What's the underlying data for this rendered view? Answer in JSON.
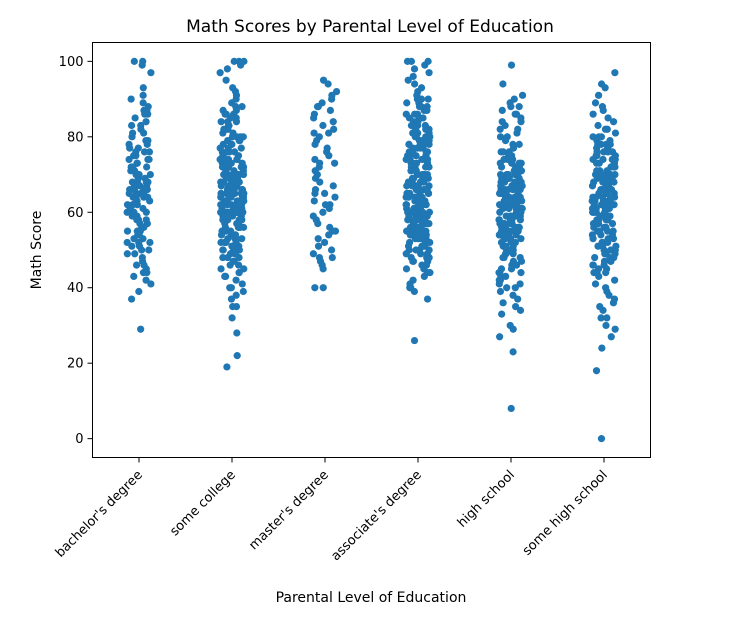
{
  "chart_data": {
    "type": "scatter",
    "subtype": "strip",
    "title": "Math Scores by Parental Level of Education",
    "xlabel": "Parental Level of Education",
    "ylabel": "Math Score",
    "categories": [
      "bachelor's degree",
      "some college",
      "master's degree",
      "associate's degree",
      "high school",
      "some high school"
    ],
    "yticks": [
      0,
      20,
      40,
      60,
      80,
      100
    ],
    "ylim": [
      -5,
      105
    ],
    "grid": false,
    "marker_color": "#1f77b4",
    "series": [
      {
        "category": "bachelor's degree",
        "summary": {
          "count": 118,
          "min": 29,
          "max": 100
        },
        "values": [
          100,
          100,
          99,
          97,
          93,
          91,
          90,
          88,
          87,
          87,
          86,
          85,
          84,
          83,
          82,
          81,
          80,
          79,
          79,
          78,
          77,
          77,
          76,
          76,
          75,
          75,
          74,
          74,
          73,
          73,
          72,
          72,
          71,
          71,
          70,
          70,
          70,
          69,
          69,
          68,
          68,
          68,
          67,
          67,
          67,
          66,
          66,
          66,
          65,
          65,
          65,
          65,
          64,
          64,
          64,
          63,
          63,
          63,
          62,
          62,
          62,
          61,
          61,
          60,
          60,
          60,
          59,
          59,
          58,
          58,
          57,
          57,
          56,
          56,
          55,
          55,
          54,
          54,
          53,
          53,
          52,
          52,
          51,
          51,
          50,
          50,
          49,
          48,
          47,
          46,
          45,
          44,
          43,
          42,
          41,
          39,
          37,
          29,
          89,
          86,
          83,
          81,
          78,
          76,
          74,
          72,
          70,
          68,
          66,
          64,
          62,
          60,
          58,
          55,
          52,
          49,
          46,
          44
        ]
      },
      {
        "category": "some college",
        "summary": {
          "count": 226,
          "min": 19,
          "max": 100
        },
        "values": [
          100,
          100,
          100,
          99,
          98,
          97,
          95,
          93,
          92,
          91,
          90,
          89,
          88,
          88,
          87,
          87,
          86,
          86,
          85,
          85,
          84,
          84,
          83,
          83,
          82,
          82,
          81,
          81,
          80,
          80,
          80,
          79,
          79,
          79,
          78,
          78,
          78,
          77,
          77,
          77,
          76,
          76,
          76,
          75,
          75,
          75,
          75,
          74,
          74,
          74,
          74,
          73,
          73,
          73,
          73,
          72,
          72,
          72,
          72,
          71,
          71,
          71,
          71,
          70,
          70,
          70,
          70,
          70,
          69,
          69,
          69,
          69,
          69,
          68,
          68,
          68,
          68,
          68,
          67,
          67,
          67,
          67,
          67,
          67,
          66,
          66,
          66,
          66,
          66,
          66,
          65,
          65,
          65,
          65,
          65,
          65,
          64,
          64,
          64,
          64,
          64,
          64,
          63,
          63,
          63,
          63,
          63,
          63,
          62,
          62,
          62,
          62,
          62,
          62,
          61,
          61,
          61,
          61,
          61,
          61,
          60,
          60,
          60,
          60,
          60,
          60,
          59,
          59,
          59,
          59,
          59,
          58,
          58,
          58,
          58,
          58,
          57,
          57,
          57,
          57,
          56,
          56,
          56,
          56,
          55,
          55,
          55,
          55,
          54,
          54,
          54,
          53,
          53,
          53,
          52,
          52,
          52,
          51,
          51,
          51,
          50,
          50,
          50,
          49,
          49,
          49,
          48,
          48,
          47,
          47,
          46,
          46,
          45,
          45,
          44,
          44,
          43,
          43,
          42,
          41,
          40,
          40,
          39,
          38,
          37,
          35,
          35,
          32,
          28,
          22,
          19,
          86,
          84,
          82,
          80,
          78,
          76,
          74,
          72,
          70,
          68,
          66,
          64,
          62,
          60,
          58,
          56,
          54,
          52,
          50,
          48,
          72,
          70,
          68,
          66,
          64,
          62,
          60,
          58,
          70,
          65,
          60,
          55,
          67,
          63
        ]
      },
      {
        "category": "master's degree",
        "summary": {
          "count": 59,
          "min": 40,
          "max": 95
        },
        "values": [
          95,
          94,
          92,
          91,
          90,
          89,
          88,
          87,
          86,
          85,
          84,
          83,
          82,
          81,
          80,
          79,
          78,
          77,
          76,
          75,
          74,
          73,
          72,
          71,
          70,
          69,
          68,
          67,
          66,
          65,
          64,
          63,
          62,
          61,
          60,
          59,
          58,
          57,
          56,
          55,
          54,
          53,
          52,
          51,
          50,
          49,
          48,
          47,
          46,
          45,
          40,
          40,
          81,
          73,
          65,
          62,
          55,
          48,
          88
        ]
      },
      {
        "category": "associate's degree",
        "summary": {
          "count": 222,
          "min": 26,
          "max": 100
        },
        "values": [
          100,
          100,
          100,
          99,
          98,
          97,
          96,
          95,
          94,
          93,
          92,
          91,
          90,
          90,
          89,
          89,
          88,
          88,
          87,
          87,
          86,
          86,
          85,
          85,
          84,
          84,
          83,
          83,
          82,
          82,
          81,
          81,
          80,
          80,
          80,
          79,
          79,
          79,
          78,
          78,
          78,
          77,
          77,
          77,
          76,
          76,
          76,
          75,
          75,
          75,
          74,
          74,
          74,
          73,
          73,
          73,
          72,
          72,
          72,
          71,
          71,
          71,
          70,
          70,
          70,
          70,
          69,
          69,
          69,
          69,
          68,
          68,
          68,
          68,
          67,
          67,
          67,
          67,
          66,
          66,
          66,
          66,
          65,
          65,
          65,
          65,
          64,
          64,
          64,
          64,
          63,
          63,
          63,
          63,
          62,
          62,
          62,
          62,
          61,
          61,
          61,
          61,
          60,
          60,
          60,
          60,
          59,
          59,
          59,
          59,
          58,
          58,
          58,
          58,
          57,
          57,
          57,
          57,
          56,
          56,
          56,
          56,
          55,
          55,
          55,
          55,
          54,
          54,
          54,
          54,
          53,
          53,
          53,
          52,
          52,
          52,
          51,
          51,
          51,
          50,
          50,
          50,
          49,
          49,
          48,
          48,
          47,
          47,
          46,
          46,
          45,
          45,
          44,
          44,
          43,
          42,
          41,
          40,
          40,
          39,
          37,
          26,
          85,
          83,
          81,
          79,
          77,
          75,
          73,
          71,
          69,
          67,
          65,
          63,
          61,
          59,
          57,
          55,
          53,
          51,
          49,
          47,
          84,
          80,
          76,
          72,
          68,
          64,
          60,
          56,
          52,
          48,
          90,
          86,
          82,
          78,
          74,
          70,
          66,
          62,
          58,
          54,
          50,
          88,
          62,
          58,
          56,
          54,
          60,
          57,
          55,
          53,
          66,
          70,
          74,
          78
        ]
      },
      {
        "category": "high school",
        "summary": {
          "count": 196,
          "min": 8,
          "max": 99
        },
        "values": [
          99,
          94,
          91,
          90,
          89,
          88,
          87,
          86,
          85,
          84,
          83,
          82,
          81,
          80,
          79,
          78,
          77,
          76,
          76,
          75,
          75,
          74,
          74,
          73,
          73,
          73,
          72,
          72,
          72,
          71,
          71,
          71,
          70,
          70,
          70,
          70,
          69,
          69,
          69,
          69,
          68,
          68,
          68,
          68,
          67,
          67,
          67,
          67,
          66,
          66,
          66,
          66,
          65,
          65,
          65,
          65,
          64,
          64,
          64,
          64,
          63,
          63,
          63,
          63,
          62,
          62,
          62,
          62,
          61,
          61,
          61,
          61,
          60,
          60,
          60,
          60,
          59,
          59,
          59,
          59,
          58,
          58,
          58,
          58,
          57,
          57,
          57,
          57,
          56,
          56,
          56,
          56,
          55,
          55,
          55,
          55,
          54,
          54,
          54,
          53,
          53,
          53,
          52,
          52,
          52,
          51,
          51,
          51,
          50,
          50,
          50,
          49,
          49,
          49,
          48,
          48,
          47,
          47,
          46,
          46,
          45,
          45,
          44,
          44,
          43,
          43,
          42,
          41,
          41,
          40,
          40,
          39,
          38,
          37,
          36,
          35,
          34,
          33,
          30,
          29,
          27,
          23,
          8,
          88,
          86,
          84,
          82,
          80,
          78,
          76,
          74,
          72,
          70,
          68,
          66,
          64,
          62,
          60,
          58,
          56,
          54,
          52,
          50,
          48,
          46,
          44,
          42,
          70,
          68,
          66,
          64,
          62,
          60,
          58,
          56,
          54,
          65,
          63,
          61,
          59,
          57,
          55,
          53,
          51,
          67,
          65,
          63,
          61,
          59,
          57,
          69,
          71,
          73,
          75
        ]
      },
      {
        "category": "some high school",
        "summary": {
          "count": 179,
          "min": 0,
          "max": 97
        },
        "values": [
          97,
          94,
          93,
          91,
          89,
          88,
          87,
          86,
          85,
          84,
          83,
          82,
          81,
          80,
          80,
          79,
          79,
          78,
          78,
          77,
          77,
          76,
          76,
          75,
          75,
          74,
          74,
          73,
          73,
          72,
          72,
          71,
          71,
          70,
          70,
          70,
          69,
          69,
          69,
          68,
          68,
          68,
          67,
          67,
          67,
          66,
          66,
          66,
          65,
          65,
          65,
          64,
          64,
          64,
          63,
          63,
          63,
          62,
          62,
          62,
          61,
          61,
          61,
          60,
          60,
          60,
          59,
          59,
          59,
          58,
          58,
          58,
          57,
          57,
          57,
          56,
          56,
          55,
          55,
          54,
          54,
          53,
          53,
          52,
          52,
          51,
          51,
          50,
          50,
          49,
          49,
          48,
          48,
          47,
          47,
          46,
          46,
          45,
          45,
          44,
          44,
          43,
          42,
          41,
          40,
          39,
          38,
          37,
          36,
          35,
          34,
          32,
          32,
          30,
          29,
          27,
          24,
          18,
          0,
          82,
          80,
          78,
          76,
          74,
          72,
          70,
          68,
          66,
          64,
          62,
          60,
          58,
          56,
          54,
          52,
          50,
          48,
          46,
          44,
          75,
          73,
          71,
          69,
          67,
          65,
          63,
          61,
          59,
          57,
          55,
          53,
          51,
          70,
          68,
          66,
          64,
          62,
          60,
          58,
          66,
          64,
          62,
          60,
          65,
          63,
          61,
          72,
          74,
          76,
          78,
          55,
          57,
          59,
          49,
          47
        ]
      }
    ]
  }
}
